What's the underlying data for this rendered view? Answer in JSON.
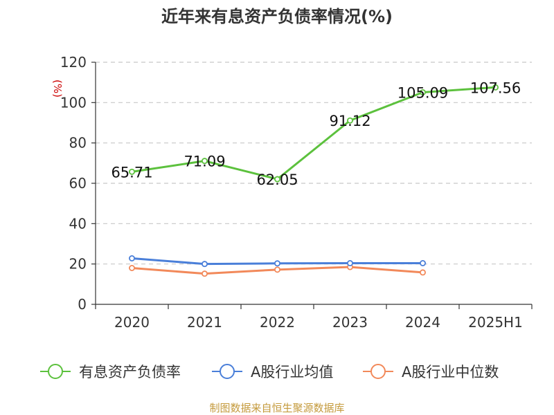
{
  "chart_data": {
    "type": "line",
    "title": "近年来有息资产负债率情况(%)",
    "ylabel": "(%)",
    "ylim": [
      0,
      120
    ],
    "yticks": [
      0,
      20,
      40,
      60,
      80,
      100,
      120
    ],
    "categories": [
      "2020",
      "2021",
      "2022",
      "2023",
      "2024",
      "2025H1"
    ],
    "series": [
      {
        "name": "有息资产负债率",
        "color": "#5cc13d",
        "values": [
          65.71,
          71.09,
          62.05,
          91.12,
          105.09,
          107.56
        ],
        "data_labels": [
          "65.71",
          "71.09",
          "62.05",
          "91.12",
          "105.09",
          "107.56"
        ]
      },
      {
        "name": "A股行业均值",
        "color": "#4a7fd9",
        "values": [
          22.8,
          20.0,
          20.3,
          20.4,
          20.4,
          null
        ]
      },
      {
        "name": "A股行业中位数",
        "color": "#f2895a",
        "values": [
          18.0,
          15.2,
          17.2,
          18.5,
          15.8,
          null
        ]
      }
    ],
    "grid": true,
    "legend_position": "bottom"
  },
  "source": "制图数据来自恒生聚源数据库"
}
